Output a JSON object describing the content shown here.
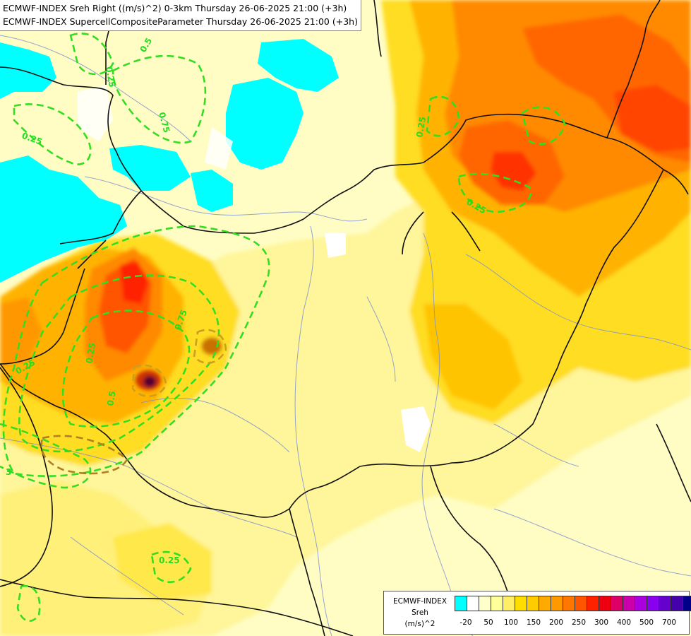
{
  "titles": {
    "line1": "ECMWF-INDEX Sreh Right ((m/s)^2) 0-3km Thursday 26-06-2025 21:00 (+3h)",
    "line2": "ECMWF-INDEX SupercellCompositeParameter Thursday 26-06-2025 21:00 (+3h)"
  },
  "legend": {
    "line1": "ECMWF-INDEX",
    "line2": "Sreh",
    "line3": "(m/s)^2",
    "ticks": [
      "-20",
      "50",
      "100",
      "150",
      "200",
      "250",
      "300",
      "400",
      "500",
      "700"
    ],
    "colors": [
      "#00ffff",
      "#ffffff",
      "#ffffcc",
      "#ffff99",
      "#ffee66",
      "#ffdd00",
      "#ffcc00",
      "#ffaa00",
      "#ff9900",
      "#ff7700",
      "#ff5500",
      "#ff2200",
      "#ee0011",
      "#dd0066",
      "#cc00aa",
      "#aa00dd",
      "#8800ee",
      "#6600cc",
      "#4400aa",
      "#000088"
    ]
  },
  "contour_labels": [
    "0.25",
    "0.5",
    "0.75",
    "0.25",
    "0.25",
    "0.25",
    "0.75",
    "0.25",
    "0.5",
    "0.25",
    "0.25",
    "3"
  ]
}
